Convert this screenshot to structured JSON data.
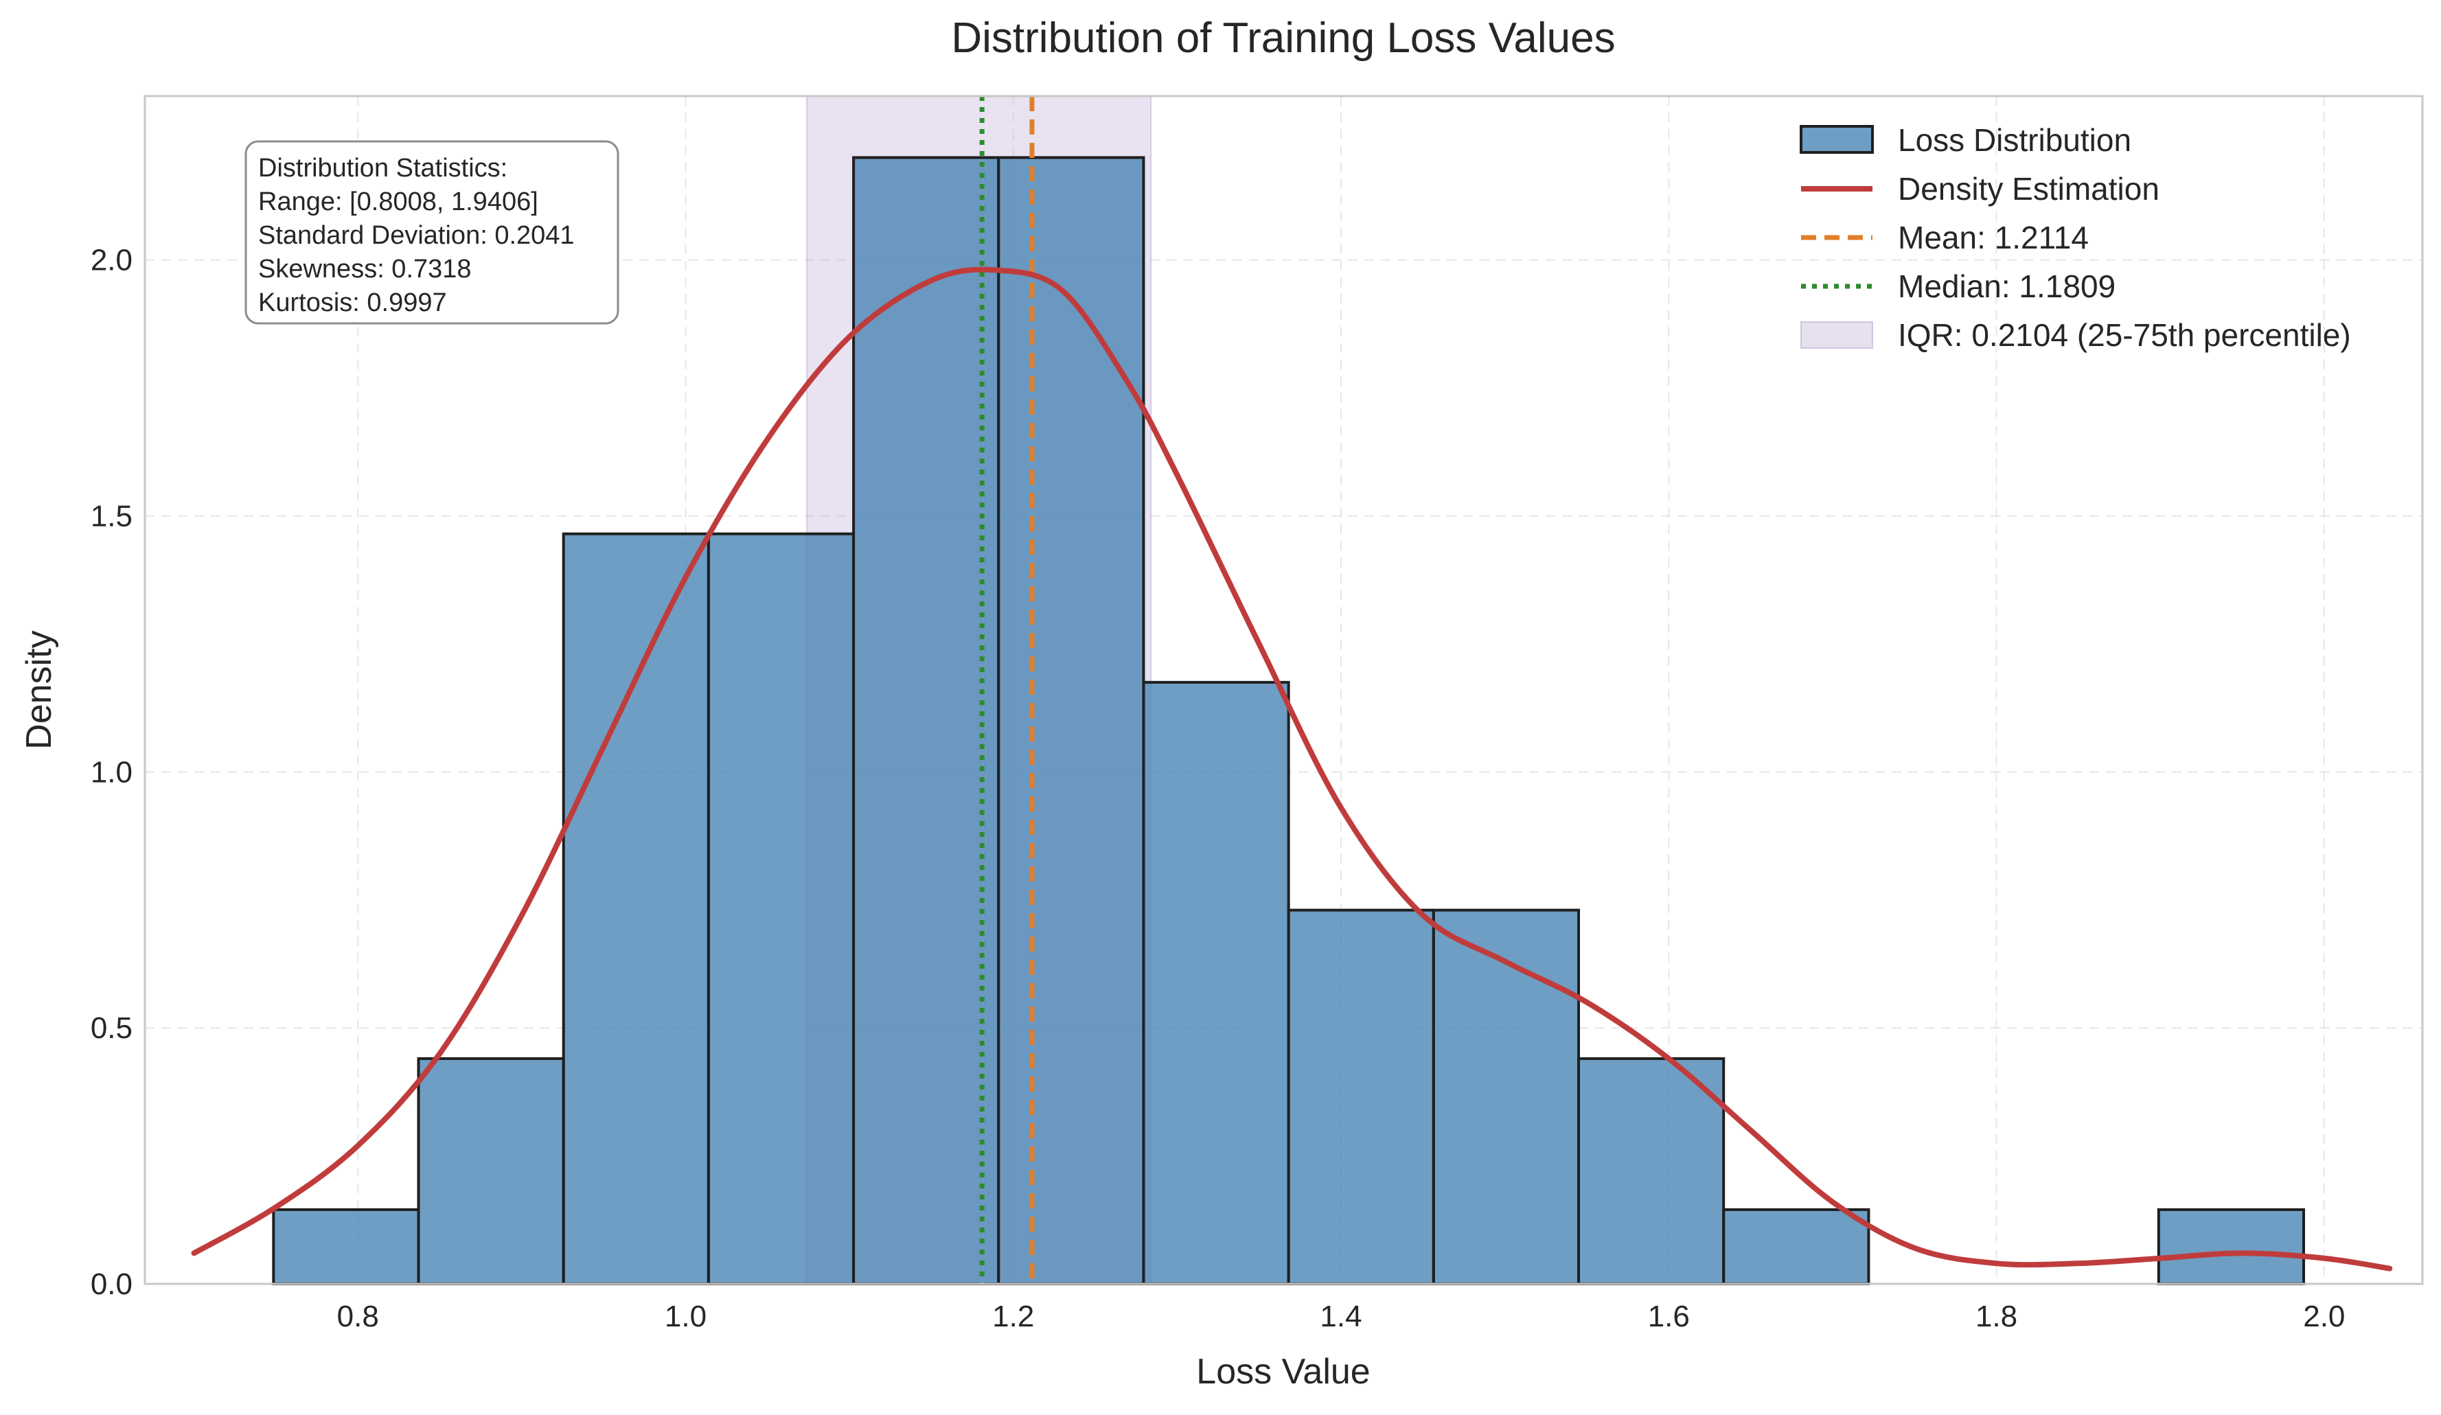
{
  "chart_data": {
    "type": "histogram",
    "title": "Distribution of Training Loss Values",
    "xlabel": "Loss Value",
    "ylabel": "Density",
    "xlim": [
      0.67,
      2.06
    ],
    "ylim": [
      0.0,
      2.32
    ],
    "x_ticks": [
      "0.8",
      "1.0",
      "1.2",
      "1.4",
      "1.6",
      "1.8",
      "2.0"
    ],
    "y_ticks": [
      "0.0",
      "0.5",
      "1.0",
      "1.5",
      "2.0"
    ],
    "grid": true,
    "legend_position": "top-right",
    "bins": [
      {
        "x0": 0.7485,
        "x1": 0.837,
        "density": 0.145
      },
      {
        "x0": 0.837,
        "x1": 0.9255,
        "density": 0.44
      },
      {
        "x0": 0.9255,
        "x1": 1.014,
        "density": 1.465
      },
      {
        "x0": 1.014,
        "x1": 1.1025,
        "density": 1.465
      },
      {
        "x0": 1.1025,
        "x1": 1.191,
        "density": 2.2
      },
      {
        "x0": 1.191,
        "x1": 1.2795,
        "density": 2.2
      },
      {
        "x0": 1.2795,
        "x1": 1.368,
        "density": 1.175
      },
      {
        "x0": 1.368,
        "x1": 1.4565,
        "density": 0.73
      },
      {
        "x0": 1.4565,
        "x1": 1.545,
        "density": 0.73
      },
      {
        "x0": 1.545,
        "x1": 1.6335,
        "density": 0.44
      },
      {
        "x0": 1.6335,
        "x1": 1.722,
        "density": 0.145
      },
      {
        "x0": 1.722,
        "x1": 1.8105,
        "density": 0.0
      },
      {
        "x0": 1.8105,
        "x1": 1.899,
        "density": 0.0
      },
      {
        "x0": 1.899,
        "x1": 1.9875,
        "density": 0.145
      }
    ],
    "density_curve": {
      "x": [
        0.7,
        0.75,
        0.8,
        0.85,
        0.9,
        0.95,
        1.0,
        1.05,
        1.1,
        1.15,
        1.19,
        1.23,
        1.27,
        1.3,
        1.35,
        1.4,
        1.45,
        1.5,
        1.55,
        1.6,
        1.65,
        1.7,
        1.75,
        1.8,
        1.85,
        1.9,
        1.95,
        2.0,
        2.04
      ],
      "y": [
        0.06,
        0.15,
        0.27,
        0.45,
        0.72,
        1.05,
        1.38,
        1.65,
        1.85,
        1.96,
        1.98,
        1.94,
        1.76,
        1.58,
        1.25,
        0.93,
        0.72,
        0.63,
        0.55,
        0.44,
        0.3,
        0.16,
        0.07,
        0.04,
        0.04,
        0.05,
        0.06,
        0.05,
        0.03
      ]
    },
    "mean": 1.2114,
    "median": 1.1809,
    "iqr_range": [
      1.074,
      1.284
    ],
    "series": [
      {
        "name": "Loss Distribution",
        "color": "#4a86b4"
      },
      {
        "name": "Density Estimation",
        "color": "#c03c3c"
      },
      {
        "name": "Mean: 1.2114",
        "color": "#e07f2a"
      },
      {
        "name": "Median: 1.1809",
        "color": "#2e8b2e"
      },
      {
        "name": "IQR: 0.2104 (25-75th percentile)",
        "color": "#b9a6d2"
      }
    ],
    "stats_box": [
      "Distribution Statistics:",
      "Range: [0.8008, 1.9406]",
      "Standard Deviation: 0.2041",
      "Skewness: 0.7318",
      "Kurtosis: 0.9997"
    ]
  }
}
